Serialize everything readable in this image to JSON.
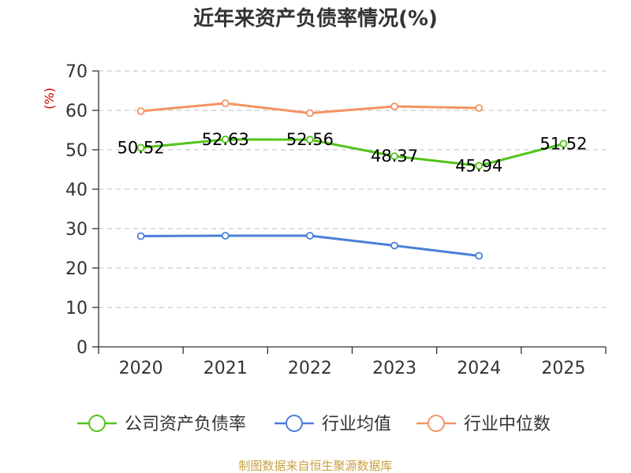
{
  "chart_data": {
    "type": "line",
    "title": "近年来资产负债率情况(%)",
    "ylabel": "(%)",
    "xlabel": "",
    "categories": [
      "2020",
      "2021",
      "2022",
      "2023",
      "2024",
      "2025"
    ],
    "ylim": [
      0,
      70
    ],
    "yticks": [
      0,
      10,
      20,
      30,
      40,
      50,
      60,
      70
    ],
    "grid": true,
    "legend_position": "bottom",
    "series": [
      {
        "name": "公司资产负债率",
        "color": "#52c41a",
        "values": [
          50.52,
          52.63,
          52.56,
          48.37,
          45.94,
          51.52
        ],
        "labels": [
          "50.52",
          "52.63",
          "52.56",
          "48.37",
          "45.94",
          "51.52"
        ]
      },
      {
        "name": "行业均值",
        "color": "#4a7fd8",
        "values": [
          28.1,
          28.2,
          28.2,
          25.7,
          23.1,
          null
        ]
      },
      {
        "name": "行业中位数",
        "color": "#f59363",
        "values": [
          59.8,
          61.8,
          59.3,
          61.0,
          60.6,
          null
        ]
      }
    ]
  },
  "footer": {
    "source": "制图数据来自恒生聚源数据库"
  }
}
